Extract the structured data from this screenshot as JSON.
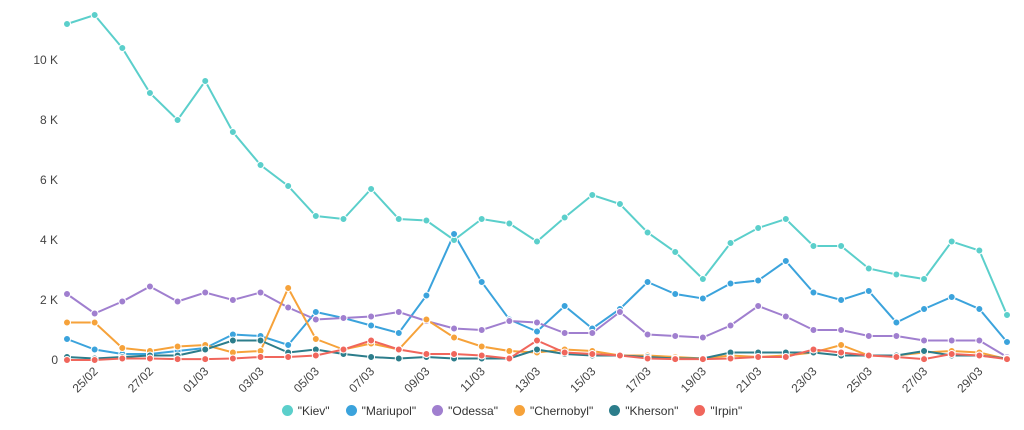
{
  "chart_data": {
    "type": "line",
    "categories": [
      null,
      "25/02",
      null,
      "27/02",
      null,
      "01/03",
      null,
      "03/03",
      null,
      "05/03",
      null,
      "07/03",
      null,
      "09/03",
      null,
      "11/03",
      null,
      "13/03",
      null,
      "15/03",
      null,
      "17/03",
      null,
      "19/03",
      null,
      "21/03",
      null,
      "23/03",
      null,
      "25/03",
      null,
      "27/03",
      null,
      "29/03",
      null
    ],
    "ylim": [
      0,
      12000
    ],
    "yticks": [
      0,
      {
        "value": 2000,
        "label": "2 K"
      },
      {
        "value": 4000,
        "label": "4 K"
      },
      {
        "value": 6000,
        "label": "6 K"
      },
      {
        "value": 8000,
        "label": "8 K"
      },
      {
        "value": 10000,
        "label": "10 K"
      }
    ],
    "grid": false,
    "series": [
      {
        "name": "\"Kiev\"",
        "color": "#5bcfcb",
        "values": [
          11200,
          11500,
          10400,
          8900,
          8000,
          9300,
          7600,
          6500,
          5800,
          4800,
          4700,
          5700,
          4700,
          4650,
          4000,
          4700,
          4550,
          3950,
          4750,
          5500,
          5200,
          4250,
          3600,
          2700,
          3900,
          4400,
          4700,
          3800,
          3800,
          3050,
          2850,
          2700,
          3950,
          3650,
          1500
        ]
      },
      {
        "name": "\"Mariupol\"",
        "color": "#3ba3dc",
        "values": [
          700,
          350,
          200,
          200,
          300,
          400,
          850,
          800,
          500,
          1600,
          1400,
          1150,
          900,
          2150,
          4200,
          2600,
          1350,
          950,
          1800,
          1050,
          1700,
          2600,
          2200,
          2050,
          2550,
          2650,
          3300,
          2250,
          2000,
          2300,
          1250,
          1700,
          2100,
          1700,
          600
        ]
      },
      {
        "name": "\"Odessa\"",
        "color": "#a07fcf",
        "values": [
          2200,
          1550,
          1950,
          2450,
          1950,
          2250,
          2000,
          2250,
          1750,
          1350,
          1400,
          1450,
          1600,
          1300,
          1050,
          1000,
          1300,
          1250,
          900,
          900,
          1600,
          850,
          800,
          750,
          1150,
          1800,
          1450,
          1000,
          1000,
          800,
          800,
          650,
          650,
          650,
          100
        ]
      },
      {
        "name": "\"Chernobyl\"",
        "color": "#f6a23a",
        "values": [
          1250,
          1250,
          400,
          300,
          450,
          500,
          250,
          300,
          2400,
          700,
          350,
          550,
          350,
          1350,
          750,
          450,
          300,
          250,
          350,
          300,
          150,
          150,
          100,
          50,
          150,
          100,
          150,
          250,
          500,
          150,
          150,
          250,
          300,
          250,
          30
        ]
      },
      {
        "name": "\"Kherson\"",
        "color": "#2c7d8b",
        "values": [
          100,
          50,
          100,
          150,
          150,
          350,
          650,
          650,
          250,
          350,
          200,
          100,
          50,
          100,
          50,
          50,
          50,
          350,
          200,
          150,
          150,
          100,
          50,
          50,
          250,
          250,
          250,
          250,
          150,
          150,
          150,
          300,
          150,
          150,
          50
        ]
      },
      {
        "name": "\"Irpin\"",
        "color": "#f0665c",
        "values": [
          0,
          0,
          50,
          50,
          30,
          30,
          50,
          100,
          100,
          150,
          350,
          650,
          350,
          200,
          200,
          150,
          50,
          650,
          250,
          200,
          150,
          50,
          30,
          30,
          50,
          100,
          100,
          350,
          250,
          150,
          100,
          30,
          200,
          150,
          30
        ]
      }
    ]
  }
}
